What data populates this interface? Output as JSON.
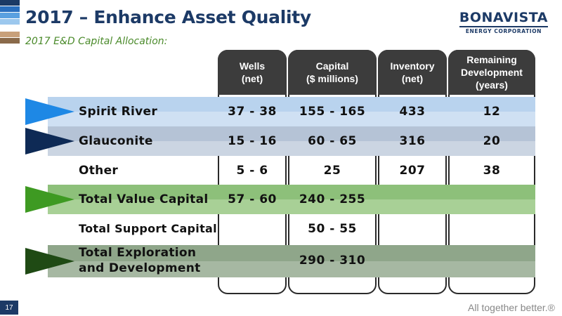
{
  "slide": {
    "title": "2017 – Enhance Asset Quality",
    "subtitle": "2017 E&D Capital Allocation:",
    "page_number": "17",
    "tagline": "All together better.®"
  },
  "logo": {
    "name": "BONAVISTA",
    "sub": "ENERGY CORPORATION"
  },
  "colors": {
    "title": "#1c3a66",
    "subtitle": "#4a8a2a",
    "header": "#3c3c3c",
    "stripes": [
      "#1c3a66",
      "#2a6fbf",
      "#5aa0e0",
      "#9cc8ee",
      "#ffffff",
      "#c8a07a",
      "#8a6a4a"
    ]
  },
  "table": {
    "columns": [
      {
        "label": "Wells\n(net)"
      },
      {
        "label": "Capital\n($ millions)"
      },
      {
        "label": "Inventory\n(net)"
      },
      {
        "label": "Remaining\nDevelopment\n(years)"
      }
    ],
    "rows": [
      {
        "label": "Spirit River",
        "wells": "37 - 38",
        "capital": "155 - 165",
        "inventory": "433",
        "years": "12"
      },
      {
        "label": "Glauconite",
        "wells": "15 - 16",
        "capital": "60 - 65",
        "inventory": "316",
        "years": "20"
      },
      {
        "label": "Other",
        "wells": "5 - 6",
        "capital": "25",
        "inventory": "207",
        "years": "38"
      },
      {
        "label": "Total Value Capital",
        "wells": "57 - 60",
        "capital": "240 - 255",
        "inventory": "",
        "years": ""
      },
      {
        "label": "Total Support Capital",
        "wells": "",
        "capital": "50 - 55",
        "inventory": "",
        "years": ""
      },
      {
        "label": "Total Exploration\nand Development",
        "wells": "",
        "capital": "290 - 310",
        "inventory": "",
        "years": ""
      }
    ]
  }
}
